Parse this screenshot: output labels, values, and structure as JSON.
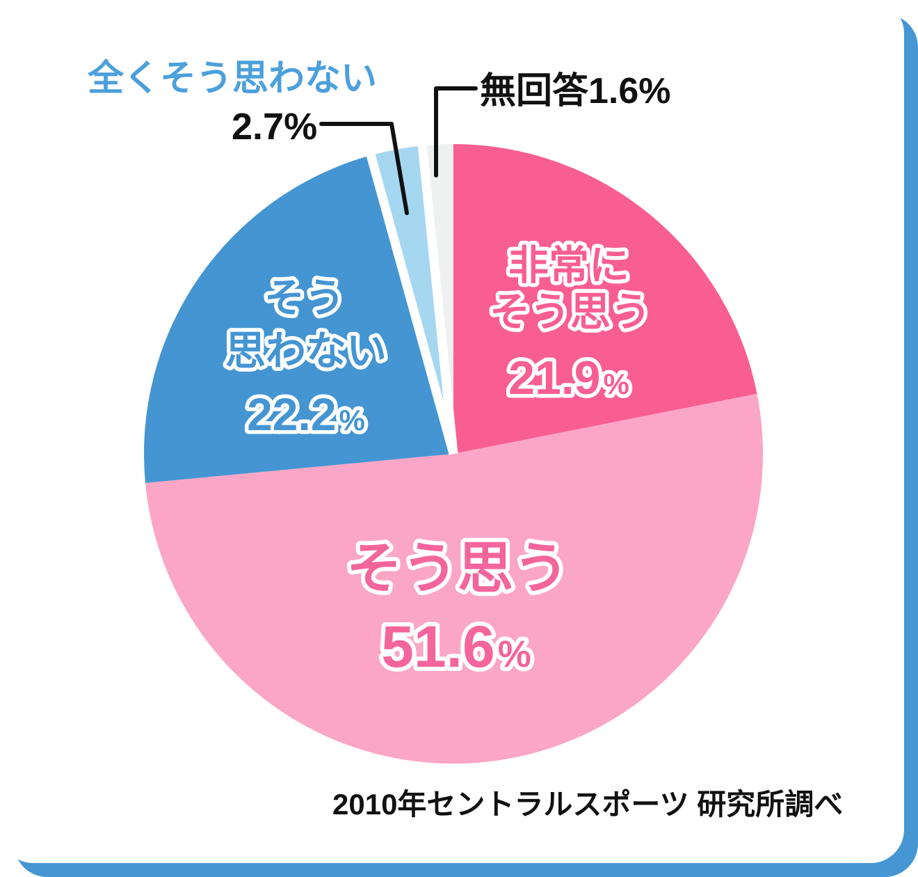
{
  "frame": {
    "card_color": "#ffffff",
    "accent_color": "#4596d3"
  },
  "chart_data": {
    "type": "pie",
    "title": "",
    "unit": "%",
    "start_angle_deg": 0,
    "direction": "clockwise",
    "legend_position": "none",
    "segments": [
      {
        "label": "非常にそう思う",
        "value": 21.9,
        "value_text": "21.9",
        "color": "#f95e93",
        "text_color": "#f95e93",
        "label_lines": [
          "非常に",
          "そう思う"
        ],
        "label_placement": "inside"
      },
      {
        "label": "そう思う",
        "value": 51.6,
        "value_text": "51.6",
        "color": "#fba6c6",
        "text_color": "#f4659c",
        "label_lines": [
          "そう思う"
        ],
        "label_placement": "inside"
      },
      {
        "label": "そう思わない",
        "value": 22.2,
        "value_text": "22.2",
        "color": "#4495d2",
        "text_color": "#4495d2",
        "label_lines": [
          "そう",
          "思わない"
        ],
        "label_placement": "inside"
      },
      {
        "label": "全くそう思わない",
        "value": 2.7,
        "value_text": "2.7",
        "color": "#a6d7f1",
        "text_color": "#111111",
        "label_lines": [],
        "label_placement": "callout"
      },
      {
        "label": "無回答",
        "value": 1.6,
        "value_text": "1.6",
        "color": "#eff0f0",
        "text_color": "#111111",
        "label_lines": [],
        "label_placement": "callout"
      }
    ],
    "callout_heading_color": "#4ba0db",
    "callout_line_color": "#111111",
    "source_note": "2010年セントラルスポーツ 研究所調べ"
  }
}
